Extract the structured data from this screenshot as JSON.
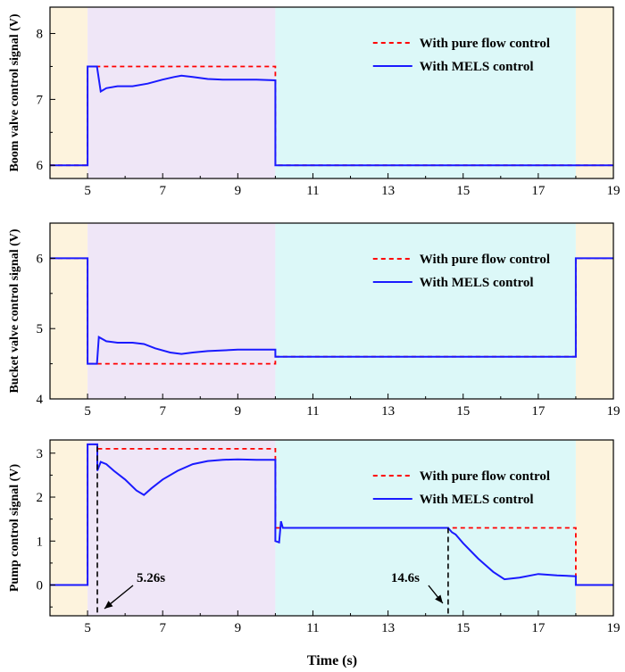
{
  "figure": {
    "xlabel": "Time (s)"
  },
  "colors": {
    "phase1": "#fdf3dd",
    "phase2": "#efe6f7",
    "phase3": "#dcf8f8",
    "pure_flow": "#ff0000",
    "mels": "#1a1aff"
  },
  "legend": {
    "pure_flow": "With pure flow control",
    "mels": "With MELS control"
  },
  "chart_data": [
    {
      "type": "line",
      "ylabel": "Boom valve control signal  (V)",
      "xlim": [
        4,
        19
      ],
      "ylim": [
        5.8,
        8.4
      ],
      "xticks": [
        5,
        7,
        9,
        11,
        13,
        15,
        17,
        19
      ],
      "yticks": [
        6,
        7,
        8
      ],
      "phases": [
        [
          4,
          5
        ],
        [
          5,
          10
        ],
        [
          10,
          18
        ],
        [
          18,
          19
        ]
      ],
      "legend_position": "top-right",
      "series": [
        {
          "key": "pure_flow",
          "name": "With pure flow control",
          "style": "dashed",
          "x": [
            4,
            5,
            5,
            10,
            10,
            19
          ],
          "y": [
            6,
            6,
            7.5,
            7.5,
            6,
            6
          ]
        },
        {
          "key": "mels",
          "name": "With MELS control",
          "style": "solid",
          "x": [
            4,
            5,
            5,
            5.25,
            5.35,
            5.5,
            5.8,
            6.2,
            6.6,
            7,
            7.3,
            7.5,
            7.8,
            8.2,
            8.6,
            9,
            9.5,
            10,
            10,
            19
          ],
          "y": [
            6,
            6,
            7.5,
            7.5,
            7.12,
            7.17,
            7.2,
            7.2,
            7.24,
            7.3,
            7.34,
            7.36,
            7.34,
            7.31,
            7.3,
            7.3,
            7.3,
            7.29,
            6,
            6
          ]
        }
      ]
    },
    {
      "type": "line",
      "ylabel": "Bucket valve control signal (V)",
      "xlim": [
        4,
        19
      ],
      "ylim": [
        4,
        6.5
      ],
      "xticks": [
        5,
        7,
        9,
        11,
        13,
        15,
        17,
        19
      ],
      "yticks": [
        4,
        5,
        6
      ],
      "phases": [
        [
          4,
          5
        ],
        [
          5,
          10
        ],
        [
          10,
          18
        ],
        [
          18,
          19
        ]
      ],
      "legend_position": "top-right",
      "series": [
        {
          "key": "pure_flow",
          "name": "With pure flow control",
          "style": "dashed",
          "x": [
            4,
            5,
            5,
            10,
            10,
            18,
            18,
            19
          ],
          "y": [
            6,
            6,
            4.5,
            4.5,
            4.6,
            4.6,
            6,
            6
          ]
        },
        {
          "key": "mels",
          "name": "With MELS control",
          "style": "solid",
          "x": [
            4,
            5,
            5,
            5.25,
            5.3,
            5.5,
            5.8,
            6.2,
            6.5,
            6.8,
            7.2,
            7.5,
            7.8,
            8.2,
            8.6,
            9,
            9.5,
            10,
            10,
            18,
            18,
            19
          ],
          "y": [
            6,
            6,
            4.5,
            4.5,
            4.88,
            4.82,
            4.8,
            4.8,
            4.78,
            4.72,
            4.66,
            4.64,
            4.66,
            4.68,
            4.69,
            4.7,
            4.7,
            4.7,
            4.6,
            4.6,
            6,
            6
          ]
        }
      ]
    },
    {
      "type": "line",
      "ylabel": "Pump control signal (V)",
      "xlabel": "Time (s)",
      "xlim": [
        4,
        19
      ],
      "ylim": [
        -0.7,
        3.3
      ],
      "xticks": [
        5,
        7,
        9,
        11,
        13,
        15,
        17,
        19
      ],
      "yticks": [
        0,
        1,
        2,
        3
      ],
      "phases": [
        [
          4,
          5
        ],
        [
          5,
          10
        ],
        [
          10,
          18
        ],
        [
          18,
          19
        ]
      ],
      "legend_position": "top-right",
      "annotations": [
        {
          "text": "5.26s",
          "x": 5.26
        },
        {
          "text": "14.6s",
          "x": 14.6
        }
      ],
      "series": [
        {
          "key": "pure_flow",
          "name": "With pure flow control",
          "style": "dashed",
          "x": [
            4,
            5,
            5,
            5.26,
            5.26,
            10,
            10,
            18,
            18,
            19
          ],
          "y": [
            0,
            0,
            3.2,
            3.2,
            3.1,
            3.1,
            1.3,
            1.3,
            0,
            0
          ]
        },
        {
          "key": "mels",
          "name": "With MELS control",
          "style": "solid",
          "x": [
            4,
            5,
            5,
            5.26,
            5.26,
            5.35,
            5.5,
            5.7,
            6,
            6.3,
            6.5,
            6.7,
            7,
            7.4,
            7.8,
            8.2,
            8.6,
            9,
            9.5,
            10,
            10,
            10.1,
            10.15,
            10.2,
            14.6,
            14.7,
            14.8,
            15,
            15.4,
            15.8,
            16.1,
            16.5,
            17,
            17.5,
            18,
            18,
            19
          ],
          "y": [
            0,
            0,
            3.2,
            3.2,
            2.6,
            2.8,
            2.75,
            2.6,
            2.4,
            2.15,
            2.05,
            2.2,
            2.4,
            2.6,
            2.75,
            2.82,
            2.85,
            2.86,
            2.85,
            2.85,
            1.0,
            0.97,
            1.45,
            1.3,
            1.3,
            1.2,
            1.15,
            0.95,
            0.6,
            0.3,
            0.13,
            0.17,
            0.25,
            0.22,
            0.2,
            0,
            0
          ]
        }
      ]
    }
  ]
}
